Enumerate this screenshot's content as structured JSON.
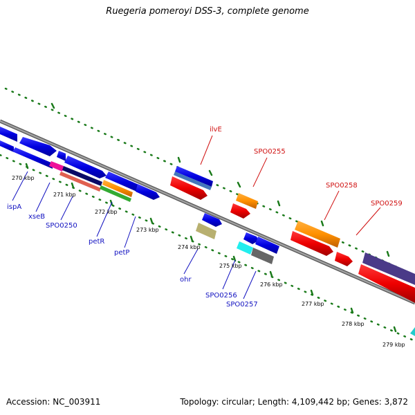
{
  "title": "Ruegeria pomeroyi DSS-3, complete genome",
  "footer": {
    "accession": "Accession: NC_003911",
    "summary": "Topology: circular; Length: 4,109,442 bp; Genes: 3,872"
  },
  "colors": {
    "backbone": "#808080",
    "tick": "#1a7a1a",
    "label_top": "#d01010",
    "label_bottom": "#1010c0"
  },
  "tick_labels": [
    "270 kbp",
    "271 kbp",
    "272 kbp",
    "273 kbp",
    "274 kbp",
    "275 kbp",
    "276 kbp",
    "277 kbp",
    "278 kbp",
    "279 kbp"
  ],
  "gene_labels_top": [
    "ilvE",
    "SPO0255",
    "SPO0258",
    "SPO0259"
  ],
  "gene_labels_bottom": [
    "ispA",
    "xseB",
    "SPO0250",
    "petR",
    "petP",
    "ohr",
    "SPO0256",
    "SPO0257"
  ]
}
